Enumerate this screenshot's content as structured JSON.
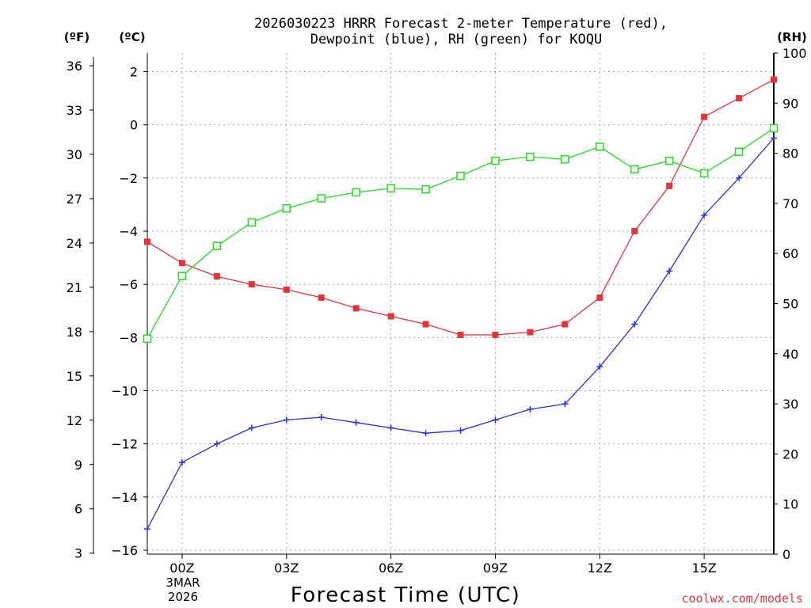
{
  "chart_data": {
    "type": "line",
    "title_line1": "2026030223 HRRR Forecast 2-meter Temperature (red),",
    "title_line2": "Dewpoint (blue), RH (green) for KOQU",
    "xlabel": "Forecast Time (UTC)",
    "date_label_line1": "3MAR",
    "date_label_line2": "2026",
    "watermark": "coolwx.com/models",
    "unit_f": "(ºF)",
    "unit_c": "(ºC)",
    "unit_rh": "(RH)",
    "x": [
      23,
      24,
      25,
      26,
      27,
      28,
      29,
      30,
      31,
      32,
      33,
      34,
      35,
      36,
      37,
      38,
      39,
      40,
      41
    ],
    "xlim": [
      23,
      41
    ],
    "x_ticks": [
      {
        "value": 24,
        "label": "00Z"
      },
      {
        "value": 27,
        "label": "03Z"
      },
      {
        "value": 30,
        "label": "06Z"
      },
      {
        "value": 33,
        "label": "09Z"
      },
      {
        "value": 36,
        "label": "12Z"
      },
      {
        "value": 39,
        "label": "15Z"
      }
    ],
    "c_axis": {
      "min": -16.15,
      "max": 2.7,
      "ticks": [
        2,
        0,
        -2,
        -4,
        -6,
        -8,
        -10,
        -12,
        -14,
        -16
      ]
    },
    "f_axis": {
      "ticks": [
        36,
        33,
        30,
        27,
        24,
        21,
        18,
        15,
        12,
        9,
        6,
        3
      ]
    },
    "rh_axis": {
      "min": 0,
      "max": 100,
      "ticks": [
        100,
        90,
        80,
        70,
        60,
        50,
        40,
        30,
        20,
        10,
        0
      ]
    },
    "series": [
      {
        "name": "Temperature",
        "units": "C",
        "color": "#e8323c",
        "marker": "filled-square",
        "values": [
          -4.4,
          -5.2,
          -5.7,
          -6.0,
          -6.2,
          -6.5,
          -6.9,
          -7.2,
          -7.5,
          -7.9,
          -7.9,
          -7.8,
          -7.5,
          -6.5,
          -4.0,
          -2.3,
          0.3,
          1.0,
          1.7
        ]
      },
      {
        "name": "Dewpoint",
        "units": "C",
        "color": "#2830e6",
        "marker": "plus",
        "values": [
          -15.2,
          -12.7,
          -12.0,
          -11.4,
          -11.1,
          -11.0,
          -11.2,
          -11.4,
          -11.6,
          -11.5,
          -11.1,
          -10.7,
          -10.5,
          -9.1,
          -7.5,
          -5.5,
          -3.4,
          -2.0,
          -0.5
        ]
      },
      {
        "name": "RH",
        "units": "%",
        "color": "#22dc22",
        "marker": "open-square",
        "values": [
          43,
          55.5,
          61.5,
          66.2,
          69,
          71,
          72.2,
          73,
          72.8,
          75.5,
          78.5,
          79.3,
          78.8,
          81.3,
          76.8,
          78.5,
          76,
          80.3,
          85
        ]
      }
    ]
  }
}
